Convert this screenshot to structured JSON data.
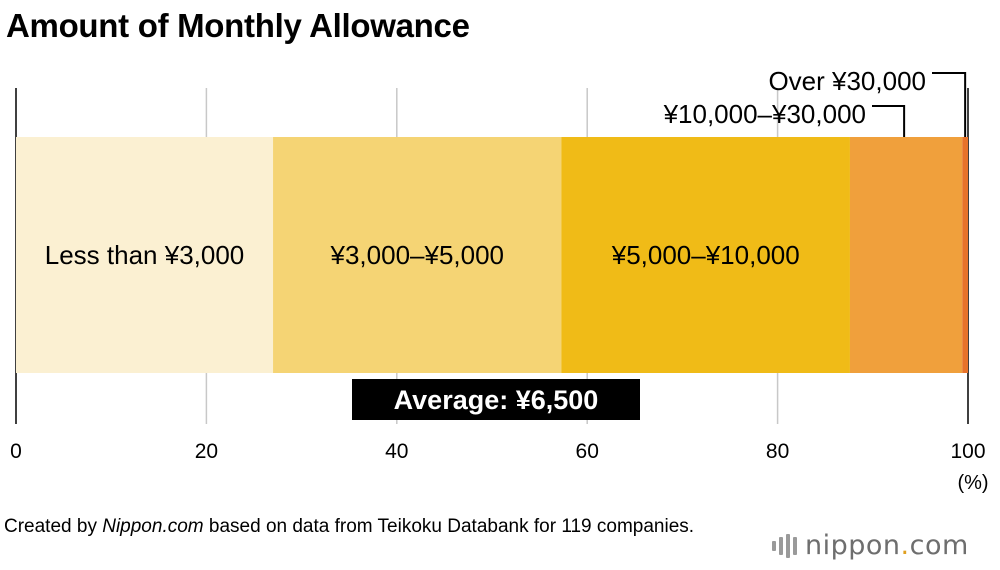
{
  "header": {
    "title": "Amount of Monthly Allowance"
  },
  "chart_data": {
    "type": "bar",
    "stacked": true,
    "orientation": "horizontal",
    "title": "Amount of Monthly Allowance",
    "unit_label": "(%)",
    "xlim": [
      0,
      100
    ],
    "x_ticks": [
      0,
      20,
      40,
      60,
      80,
      100
    ],
    "grid": true,
    "series": [
      {
        "name": "Less than ¥3,000",
        "value": 27.0,
        "color": "#fbf0d2",
        "label_inside": true
      },
      {
        "name": "¥3,000–¥5,000",
        "value": 30.3,
        "color": "#f5d474",
        "label_inside": true
      },
      {
        "name": "¥5,000–¥10,000",
        "value": 30.3,
        "color": "#f0bb17",
        "label_inside": true
      },
      {
        "name": "¥10,000–¥30,000",
        "value": 11.8,
        "color": "#f0a03c",
        "label_inside": false
      },
      {
        "name": "Over ¥30,000",
        "value": 0.6,
        "color": "#e8732a",
        "label_inside": false
      }
    ],
    "annotation": "Average: ¥6,500"
  },
  "footer": {
    "source_prefix": "Created by ",
    "source_site": "Nippon.com",
    "source_suffix": " based on data from Teikoku Databank for 119 companies.",
    "brand_name": "nippon",
    "brand_dot": ".",
    "brand_tld": "com"
  }
}
